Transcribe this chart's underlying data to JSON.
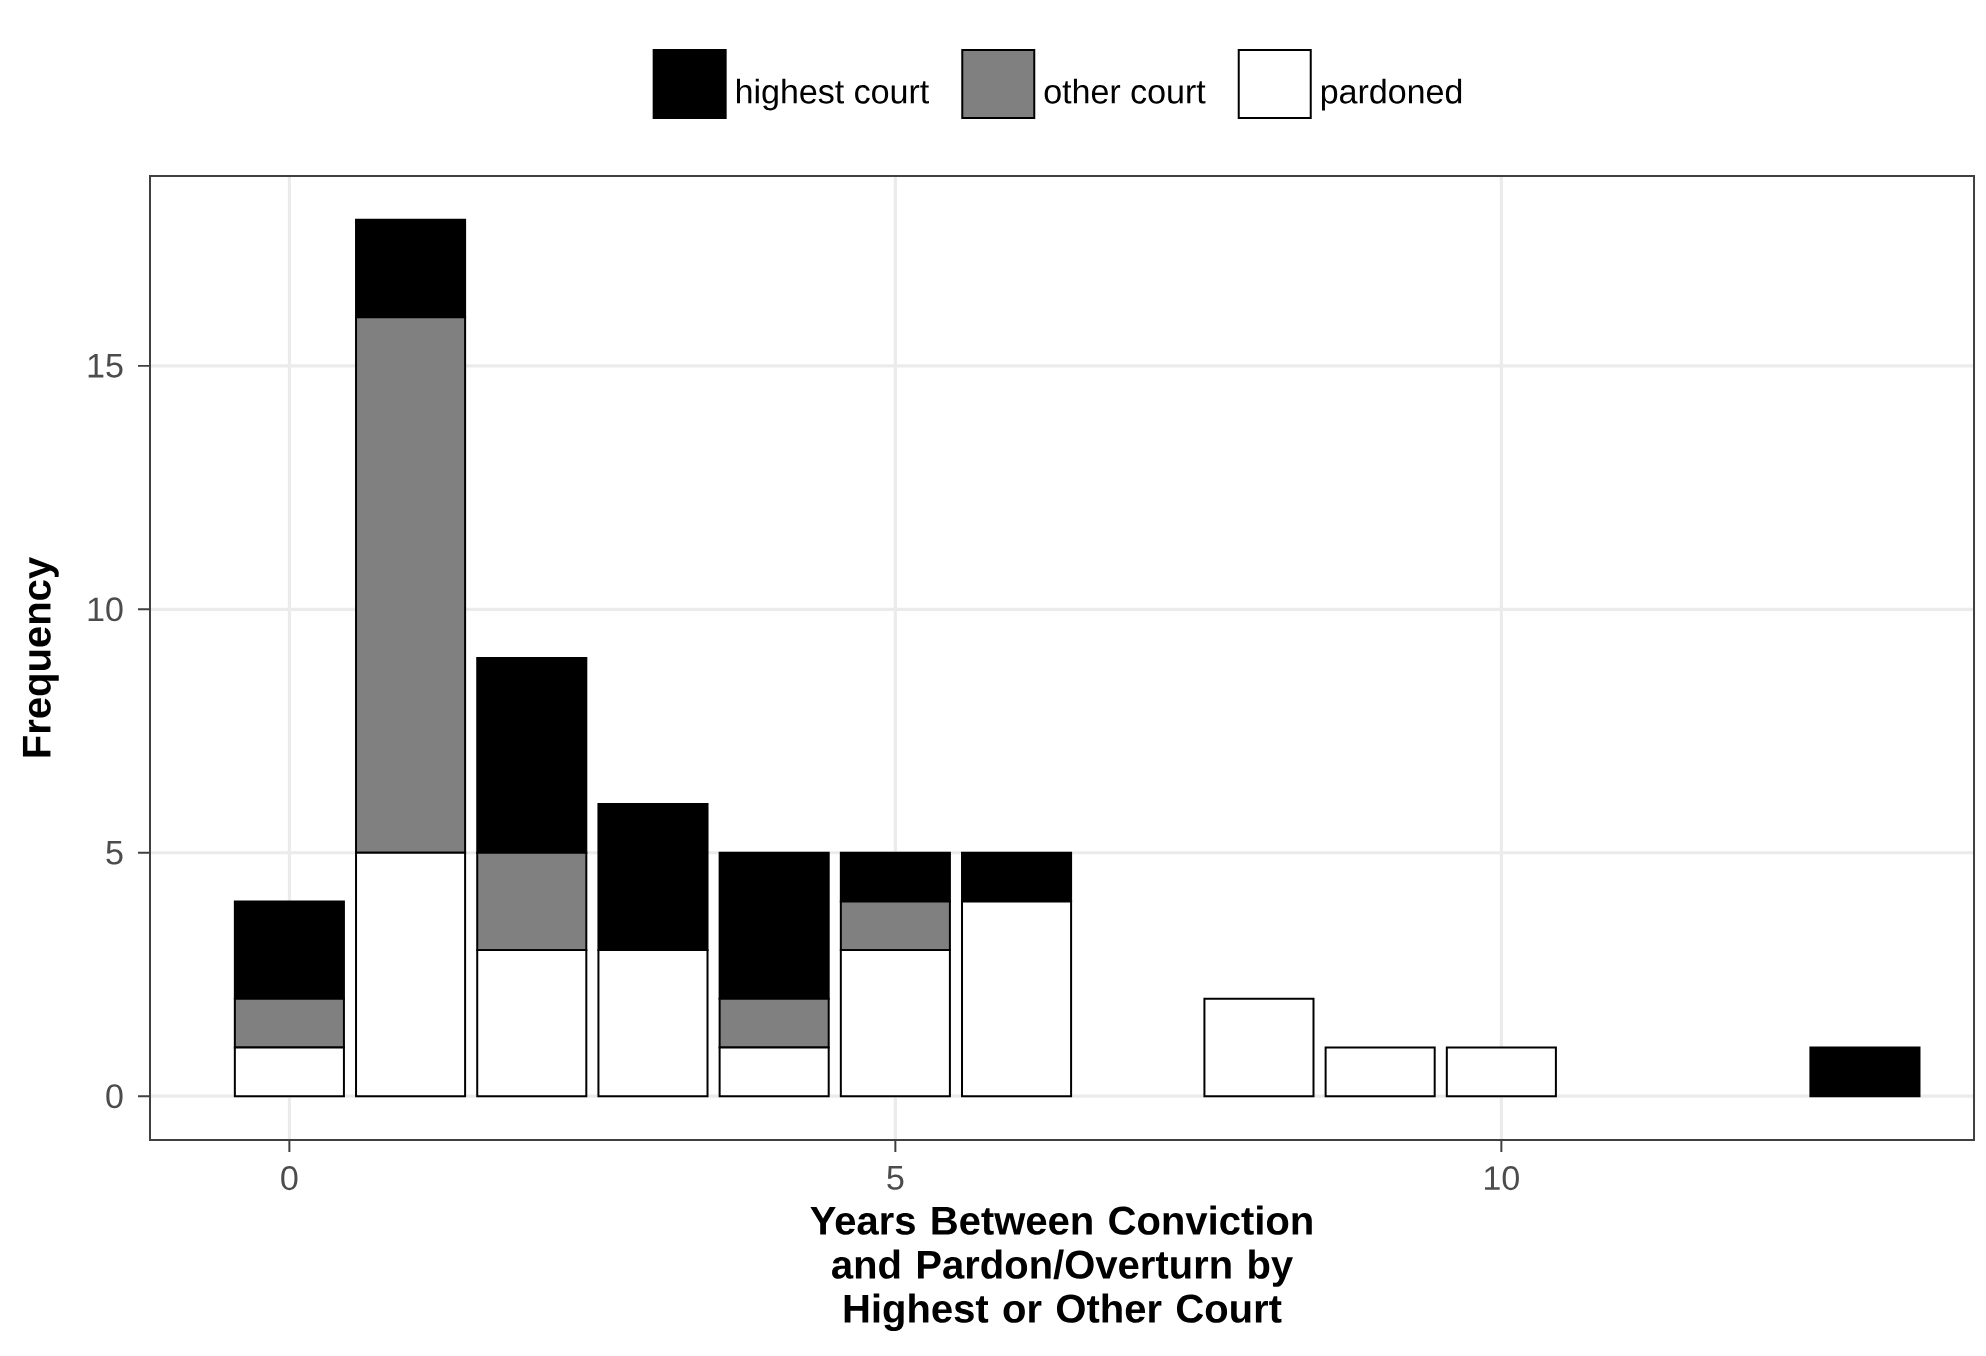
{
  "chart_data": {
    "type": "bar",
    "stacked": true,
    "xlabel": "Years Between Conviction and Pardon/Overturn by Highest or Other Court",
    "ylabel": "Frequency",
    "x": [
      0,
      1,
      2,
      3,
      4,
      5,
      6,
      8,
      9,
      10,
      13
    ],
    "series": [
      {
        "name": "pardoned",
        "color": "#ffffff",
        "values": [
          1,
          5,
          3,
          3,
          1,
          3,
          4,
          2,
          1,
          1,
          null
        ]
      },
      {
        "name": "other court",
        "color": "#808080",
        "values": [
          1,
          11,
          2,
          null,
          1,
          1,
          null,
          null,
          null,
          null,
          null
        ]
      },
      {
        "name": "highest court",
        "color": "#000000",
        "values": [
          2,
          2,
          4,
          3,
          3,
          1,
          1,
          null,
          null,
          null,
          1
        ]
      }
    ],
    "xlim": [
      -1.15,
      13.9
    ],
    "ylim": [
      -0.9,
      18.9
    ],
    "xticks": [
      0,
      5,
      10
    ],
    "yticks": [
      0,
      5,
      10,
      15
    ],
    "grid": true,
    "legend": "top"
  }
}
